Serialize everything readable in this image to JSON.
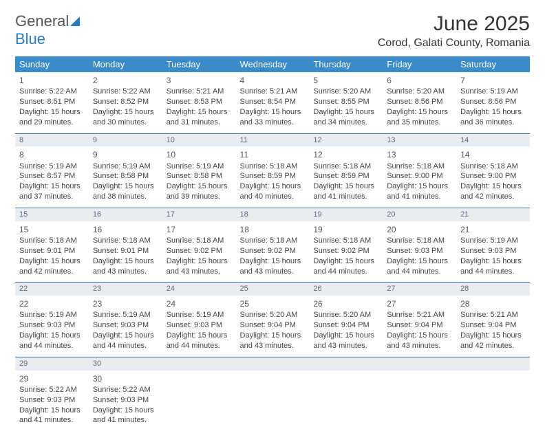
{
  "logo": {
    "word1": "General",
    "word2": "Blue"
  },
  "header": {
    "month_title": "June 2025",
    "location": "Corod, Galati County, Romania"
  },
  "day_names": [
    "Sunday",
    "Monday",
    "Tuesday",
    "Wednesday",
    "Thursday",
    "Friday",
    "Saturday"
  ],
  "colors": {
    "header_bg": "#3b8bc8",
    "header_text": "#ffffff",
    "divider": "#3b6f99",
    "weeknum_bg": "#e9edf1",
    "text": "#444444",
    "logo_blue": "#2b7bbf"
  },
  "weeks": [
    {
      "days": [
        {
          "n": "1",
          "sunrise": "Sunrise: 5:22 AM",
          "sunset": "Sunset: 8:51 PM",
          "dl1": "Daylight: 15 hours",
          "dl2": "and 29 minutes."
        },
        {
          "n": "2",
          "sunrise": "Sunrise: 5:22 AM",
          "sunset": "Sunset: 8:52 PM",
          "dl1": "Daylight: 15 hours",
          "dl2": "and 30 minutes."
        },
        {
          "n": "3",
          "sunrise": "Sunrise: 5:21 AM",
          "sunset": "Sunset: 8:53 PM",
          "dl1": "Daylight: 15 hours",
          "dl2": "and 31 minutes."
        },
        {
          "n": "4",
          "sunrise": "Sunrise: 5:21 AM",
          "sunset": "Sunset: 8:54 PM",
          "dl1": "Daylight: 15 hours",
          "dl2": "and 33 minutes."
        },
        {
          "n": "5",
          "sunrise": "Sunrise: 5:20 AM",
          "sunset": "Sunset: 8:55 PM",
          "dl1": "Daylight: 15 hours",
          "dl2": "and 34 minutes."
        },
        {
          "n": "6",
          "sunrise": "Sunrise: 5:20 AM",
          "sunset": "Sunset: 8:56 PM",
          "dl1": "Daylight: 15 hours",
          "dl2": "and 35 minutes."
        },
        {
          "n": "7",
          "sunrise": "Sunrise: 5:19 AM",
          "sunset": "Sunset: 8:56 PM",
          "dl1": "Daylight: 15 hours",
          "dl2": "and 36 minutes."
        }
      ],
      "wknums": [
        "8",
        "9",
        "10",
        "11",
        "12",
        "13",
        "14"
      ]
    },
    {
      "days": [
        {
          "n": "8",
          "sunrise": "Sunrise: 5:19 AM",
          "sunset": "Sunset: 8:57 PM",
          "dl1": "Daylight: 15 hours",
          "dl2": "and 37 minutes."
        },
        {
          "n": "9",
          "sunrise": "Sunrise: 5:19 AM",
          "sunset": "Sunset: 8:58 PM",
          "dl1": "Daylight: 15 hours",
          "dl2": "and 38 minutes."
        },
        {
          "n": "10",
          "sunrise": "Sunrise: 5:19 AM",
          "sunset": "Sunset: 8:58 PM",
          "dl1": "Daylight: 15 hours",
          "dl2": "and 39 minutes."
        },
        {
          "n": "11",
          "sunrise": "Sunrise: 5:18 AM",
          "sunset": "Sunset: 8:59 PM",
          "dl1": "Daylight: 15 hours",
          "dl2": "and 40 minutes."
        },
        {
          "n": "12",
          "sunrise": "Sunrise: 5:18 AM",
          "sunset": "Sunset: 8:59 PM",
          "dl1": "Daylight: 15 hours",
          "dl2": "and 41 minutes."
        },
        {
          "n": "13",
          "sunrise": "Sunrise: 5:18 AM",
          "sunset": "Sunset: 9:00 PM",
          "dl1": "Daylight: 15 hours",
          "dl2": "and 41 minutes."
        },
        {
          "n": "14",
          "sunrise": "Sunrise: 5:18 AM",
          "sunset": "Sunset: 9:00 PM",
          "dl1": "Daylight: 15 hours",
          "dl2": "and 42 minutes."
        }
      ],
      "wknums": [
        "15",
        "16",
        "17",
        "18",
        "19",
        "20",
        "21"
      ]
    },
    {
      "days": [
        {
          "n": "15",
          "sunrise": "Sunrise: 5:18 AM",
          "sunset": "Sunset: 9:01 PM",
          "dl1": "Daylight: 15 hours",
          "dl2": "and 42 minutes."
        },
        {
          "n": "16",
          "sunrise": "Sunrise: 5:18 AM",
          "sunset": "Sunset: 9:01 PM",
          "dl1": "Daylight: 15 hours",
          "dl2": "and 43 minutes."
        },
        {
          "n": "17",
          "sunrise": "Sunrise: 5:18 AM",
          "sunset": "Sunset: 9:02 PM",
          "dl1": "Daylight: 15 hours",
          "dl2": "and 43 minutes."
        },
        {
          "n": "18",
          "sunrise": "Sunrise: 5:18 AM",
          "sunset": "Sunset: 9:02 PM",
          "dl1": "Daylight: 15 hours",
          "dl2": "and 43 minutes."
        },
        {
          "n": "19",
          "sunrise": "Sunrise: 5:18 AM",
          "sunset": "Sunset: 9:02 PM",
          "dl1": "Daylight: 15 hours",
          "dl2": "and 44 minutes."
        },
        {
          "n": "20",
          "sunrise": "Sunrise: 5:18 AM",
          "sunset": "Sunset: 9:03 PM",
          "dl1": "Daylight: 15 hours",
          "dl2": "and 44 minutes."
        },
        {
          "n": "21",
          "sunrise": "Sunrise: 5:19 AM",
          "sunset": "Sunset: 9:03 PM",
          "dl1": "Daylight: 15 hours",
          "dl2": "and 44 minutes."
        }
      ],
      "wknums": [
        "22",
        "23",
        "24",
        "25",
        "26",
        "27",
        "28"
      ]
    },
    {
      "days": [
        {
          "n": "22",
          "sunrise": "Sunrise: 5:19 AM",
          "sunset": "Sunset: 9:03 PM",
          "dl1": "Daylight: 15 hours",
          "dl2": "and 44 minutes."
        },
        {
          "n": "23",
          "sunrise": "Sunrise: 5:19 AM",
          "sunset": "Sunset: 9:03 PM",
          "dl1": "Daylight: 15 hours",
          "dl2": "and 44 minutes."
        },
        {
          "n": "24",
          "sunrise": "Sunrise: 5:19 AM",
          "sunset": "Sunset: 9:03 PM",
          "dl1": "Daylight: 15 hours",
          "dl2": "and 44 minutes."
        },
        {
          "n": "25",
          "sunrise": "Sunrise: 5:20 AM",
          "sunset": "Sunset: 9:04 PM",
          "dl1": "Daylight: 15 hours",
          "dl2": "and 43 minutes."
        },
        {
          "n": "26",
          "sunrise": "Sunrise: 5:20 AM",
          "sunset": "Sunset: 9:04 PM",
          "dl1": "Daylight: 15 hours",
          "dl2": "and 43 minutes."
        },
        {
          "n": "27",
          "sunrise": "Sunrise: 5:21 AM",
          "sunset": "Sunset: 9:04 PM",
          "dl1": "Daylight: 15 hours",
          "dl2": "and 43 minutes."
        },
        {
          "n": "28",
          "sunrise": "Sunrise: 5:21 AM",
          "sunset": "Sunset: 9:04 PM",
          "dl1": "Daylight: 15 hours",
          "dl2": "and 42 minutes."
        }
      ],
      "wknums": [
        "29",
        "30",
        "",
        "",
        "",
        "",
        ""
      ]
    },
    {
      "days": [
        {
          "n": "29",
          "sunrise": "Sunrise: 5:22 AM",
          "sunset": "Sunset: 9:03 PM",
          "dl1": "Daylight: 15 hours",
          "dl2": "and 41 minutes."
        },
        {
          "n": "30",
          "sunrise": "Sunrise: 5:22 AM",
          "sunset": "Sunset: 9:03 PM",
          "dl1": "Daylight: 15 hours",
          "dl2": "and 41 minutes."
        },
        null,
        null,
        null,
        null,
        null
      ],
      "wknums": null
    }
  ]
}
